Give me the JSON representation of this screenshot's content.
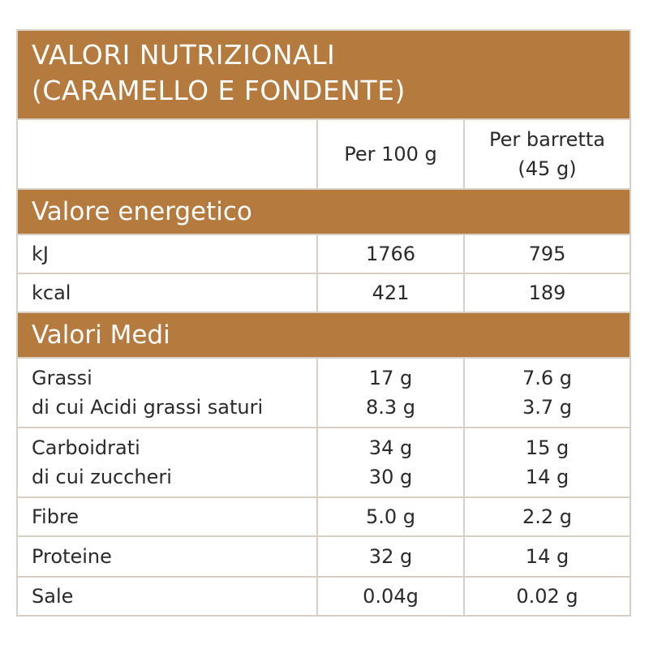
{
  "title": {
    "line1": "VALORI NUTRIZIONALI",
    "line2": "(CARAMELLO E FONDENTE)"
  },
  "columns": {
    "per100": "Per 100 g",
    "perbar_line1": "Per barretta",
    "perbar_line2": "(45 g)"
  },
  "sections": {
    "energy": "Valore energetico",
    "medi": "Valori Medi"
  },
  "energy_rows": [
    {
      "label": "kJ",
      "per100": "1766",
      "perbar": "795"
    },
    {
      "label": "kcal",
      "per100": "421",
      "perbar": "189"
    }
  ],
  "nutrient_rows": [
    {
      "label": "Grassi",
      "sublabel": "di cui Acidi grassi saturi",
      "per100": "17 g",
      "per100_sub": "8.3 g",
      "perbar": "7.6 g",
      "perbar_sub": "3.7 g"
    },
    {
      "label": "Carboidrati",
      "sublabel": "di cui zuccheri",
      "per100": "34 g",
      "per100_sub": "30 g",
      "perbar": "15 g",
      "perbar_sub": "14 g"
    },
    {
      "label": "Fibre",
      "per100": "5.0 g",
      "perbar": "2.2 g"
    },
    {
      "label": "Proteine",
      "per100": "32 g",
      "perbar": "14 g"
    },
    {
      "label": "Sale",
      "per100": "0.04g",
      "perbar": "0.02 g"
    }
  ],
  "colors": {
    "band": "#b57a3e",
    "grid": "#d8d0c4"
  }
}
